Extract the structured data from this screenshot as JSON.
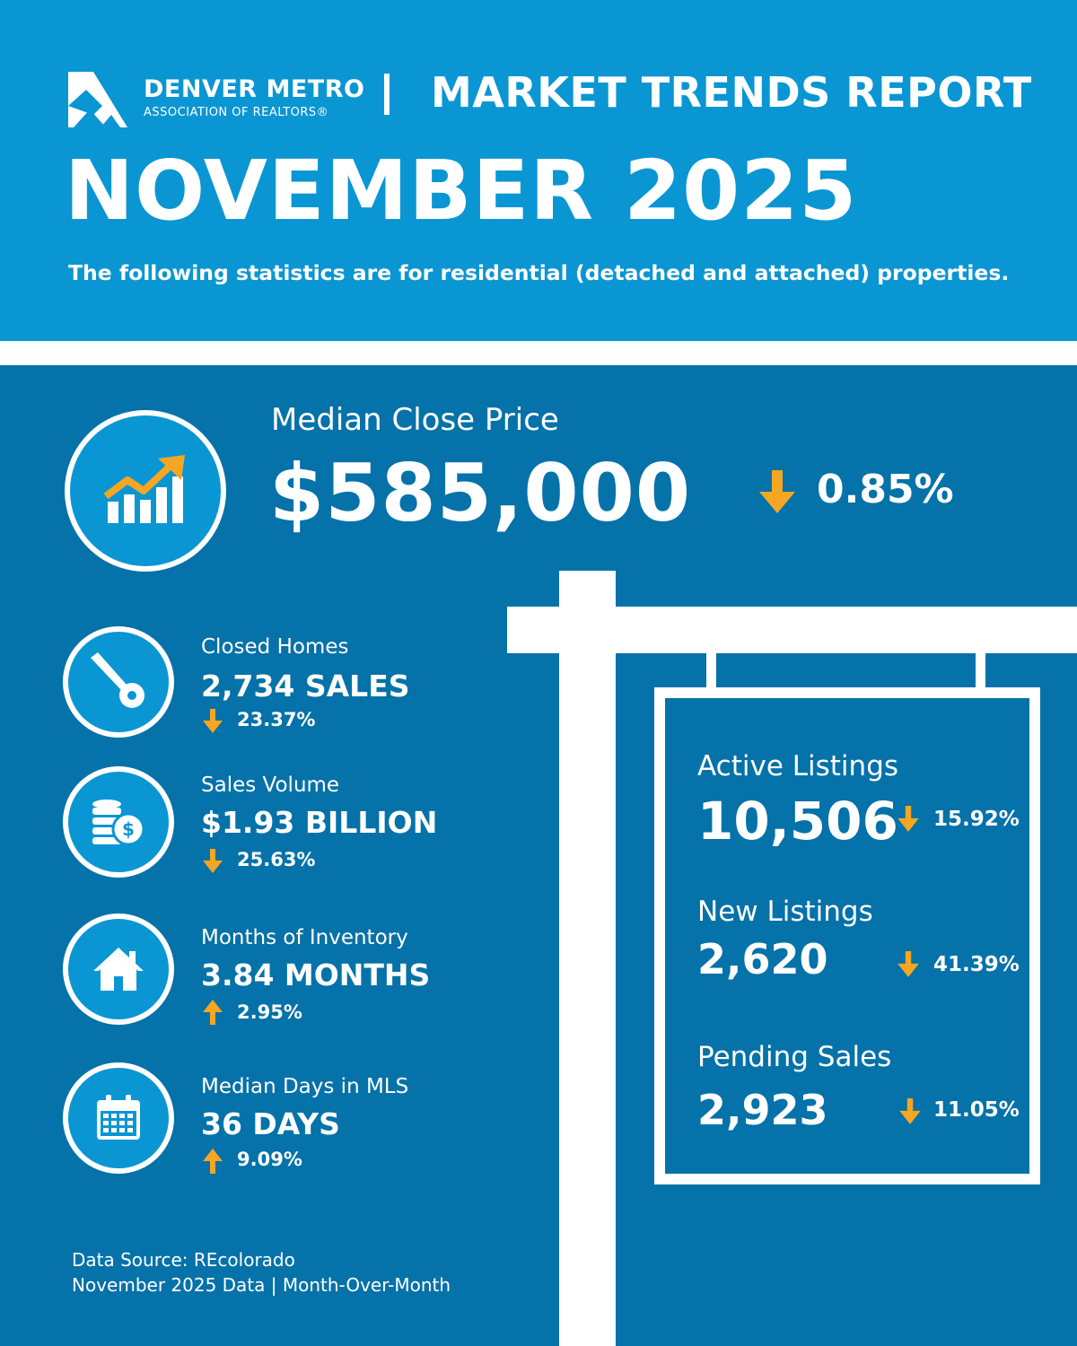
{
  "header": {
    "org_name": "DENVER METRO",
    "org_subtitle": "ASSOCIATION OF REALTORS®",
    "report_title": "MARKET TRENDS REPORT",
    "month": "NOVEMBER 2025",
    "subtitle": "The following statistics are for residential (detached and attached) properties."
  },
  "colors": {
    "header_bg": "#0a96d3",
    "main_bg": "#0572a9",
    "accent_arrow": "#f5a623",
    "white": "#ffffff"
  },
  "median_close_price": {
    "label": "Median Close Price",
    "value": "$585,000",
    "direction": "down",
    "change": "0.85%",
    "icon": "growth-chart-icon"
  },
  "stats": [
    {
      "label": "Closed Homes",
      "value": "2,734 SALES",
      "direction": "down",
      "change": "23.37%",
      "icon": "key-icon"
    },
    {
      "label": "Sales Volume",
      "value": "$1.93 BILLION",
      "direction": "down",
      "change": "25.63%",
      "icon": "coins-icon"
    },
    {
      "label": "Months of Inventory",
      "value": "3.84 MONTHS",
      "direction": "up",
      "change": "2.95%",
      "icon": "house-icon"
    },
    {
      "label": "Median Days in MLS",
      "value": "36 DAYS",
      "direction": "up",
      "change": "9.09%",
      "icon": "calendar-icon"
    }
  ],
  "sign": [
    {
      "label": "Active Listings",
      "value": "10,506",
      "direction": "down",
      "change": "15.92%"
    },
    {
      "label": "New Listings",
      "value": "2,620",
      "direction": "down",
      "change": "41.39%"
    },
    {
      "label": "Pending Sales",
      "value": "2,923",
      "direction": "down",
      "change": "11.05%"
    }
  ],
  "footer": {
    "source": "Data Source: REcolorado",
    "note": "November 2025 Data | Month-Over-Month"
  }
}
